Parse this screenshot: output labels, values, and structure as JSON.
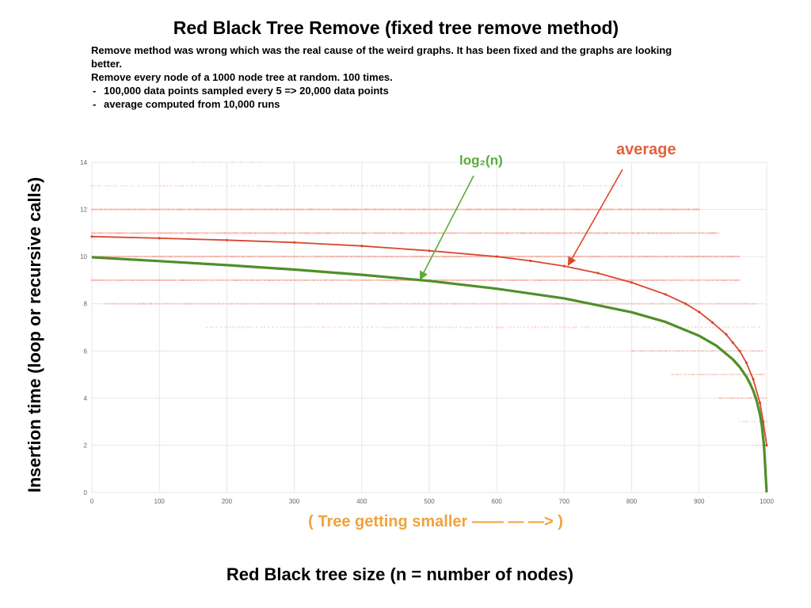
{
  "title": "Red Black Tree Remove (fixed tree remove method)",
  "description": {
    "lines": [
      "Remove method was wrong which was the real cause of the weird graphs. It has been fixed and the graphs are looking better.",
      "Remove every node of a 1000 node tree at random. 100 times."
    ],
    "bullets": [
      "100,000 data points sampled every 5 => 20,000 data points",
      "average computed from 10,000 runs"
    ]
  },
  "colors": {
    "average": "#d9472b",
    "log": "#4f8f2a",
    "scatter": "#f3a69a",
    "log_annotation": "#5bab3a",
    "average_annotation": "#e0623f",
    "x_note": "#f0a23c",
    "grid": "#e6e6e6"
  },
  "chart_data": {
    "type": "scatter",
    "xlabel": "Red Black tree size (n = number of nodes)",
    "ylabel": "Insertion time (loop or recursive calls)",
    "x_note": "( Tree getting smaller —— — —> )",
    "xlim": [
      0,
      1000
    ],
    "ylim": [
      0,
      14
    ],
    "x_ticks": [
      0,
      100,
      200,
      300,
      400,
      500,
      600,
      700,
      800,
      900,
      1000
    ],
    "y_ticks": [
      0,
      2,
      4,
      6,
      8,
      10,
      12,
      14
    ],
    "grid": true,
    "annotations": [
      {
        "text": "log₂(n)",
        "target_series": "log",
        "point": [
          490,
          8.97
        ]
      },
      {
        "text": "average",
        "target_series": "average",
        "point": [
          705,
          9.6
        ]
      }
    ],
    "series": [
      {
        "key": "average",
        "line_style": "line-with-markers",
        "x": [
          0,
          100,
          200,
          300,
          400,
          500,
          600,
          650,
          700,
          750,
          800,
          850,
          880,
          900,
          920,
          940,
          950,
          960,
          970,
          980,
          990,
          995,
          1000
        ],
        "y": [
          10.85,
          10.78,
          10.7,
          10.6,
          10.45,
          10.25,
          10.0,
          9.82,
          9.6,
          9.3,
          8.9,
          8.4,
          8.0,
          7.65,
          7.2,
          6.7,
          6.35,
          6.0,
          5.5,
          4.8,
          3.8,
          3.0,
          2.0
        ]
      },
      {
        "key": "log",
        "line_style": "line",
        "x": [
          0,
          100,
          200,
          300,
          400,
          500,
          600,
          700,
          800,
          850,
          900,
          925,
          950,
          960,
          970,
          975,
          980,
          985,
          990,
          993,
          996,
          998,
          1000
        ],
        "y": [
          9.97,
          9.81,
          9.64,
          9.45,
          9.23,
          8.97,
          8.64,
          8.23,
          7.64,
          7.23,
          6.64,
          6.23,
          5.64,
          5.32,
          4.91,
          4.64,
          4.32,
          3.91,
          3.32,
          2.81,
          2.0,
          1.0,
          0.0
        ]
      }
    ],
    "scatter_levels": [
      {
        "y": 14,
        "x_range": [
          150,
          250
        ],
        "density": "very-sparse"
      },
      {
        "y": 13,
        "x_range": [
          0,
          790
        ],
        "density": "sparse"
      },
      {
        "y": 12,
        "x_range": [
          0,
          900
        ],
        "density": "dense"
      },
      {
        "y": 11,
        "x_range": [
          0,
          930
        ],
        "density": "dense"
      },
      {
        "y": 10,
        "x_range": [
          0,
          960
        ],
        "density": "dense"
      },
      {
        "y": 9,
        "x_range": [
          0,
          960
        ],
        "density": "dense"
      },
      {
        "y": 8,
        "x_range": [
          20,
          985
        ],
        "density": "medium"
      },
      {
        "y": 7,
        "x_range": [
          170,
          990
        ],
        "density": "sparse"
      },
      {
        "y": 6,
        "x_range": [
          800,
          995
        ],
        "density": "medium"
      },
      {
        "y": 5,
        "x_range": [
          860,
          998
        ],
        "density": "medium"
      },
      {
        "y": 4,
        "x_range": [
          930,
          1000
        ],
        "density": "medium"
      },
      {
        "y": 3,
        "x_range": [
          960,
          1000
        ],
        "density": "sparse"
      },
      {
        "y": 2,
        "x_range": [
          980,
          1000
        ],
        "density": "sparse"
      }
    ]
  }
}
